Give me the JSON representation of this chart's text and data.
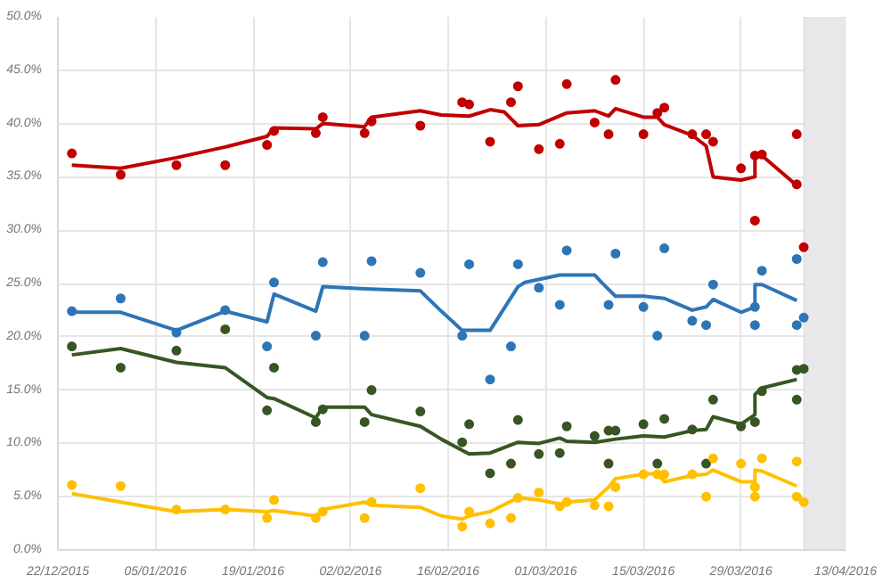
{
  "chart_data": {
    "type": "line",
    "xlim": [
      "2015-12-22",
      "2016-04-13"
    ],
    "xticks": [
      {
        "value": "2015-12-22",
        "label": "22/12/2015"
      },
      {
        "value": "2016-01-05",
        "label": "05/01/2016"
      },
      {
        "value": "2016-01-19",
        "label": "19/01/2016"
      },
      {
        "value": "2016-02-02",
        "label": "02/02/2016"
      },
      {
        "value": "2016-02-16",
        "label": "16/02/2016"
      },
      {
        "value": "2016-03-01",
        "label": "01/03/2016"
      },
      {
        "value": "2016-03-15",
        "label": "15/03/2016"
      },
      {
        "value": "2016-03-29",
        "label": "29/03/2016"
      },
      {
        "value": "2016-04-13",
        "label": "13/04/2016"
      }
    ],
    "ylim": [
      0,
      50
    ],
    "yticks": [
      {
        "value": 0,
        "label": "0.0%"
      },
      {
        "value": 5,
        "label": "5.0%"
      },
      {
        "value": 10,
        "label": "10.0%"
      },
      {
        "value": 15,
        "label": "15.0%"
      },
      {
        "value": 20,
        "label": "20.0%"
      },
      {
        "value": 25,
        "label": "25.0%"
      },
      {
        "value": 30,
        "label": "30.0%"
      },
      {
        "value": 35,
        "label": "35.0%"
      },
      {
        "value": 40,
        "label": "40.0%"
      },
      {
        "value": 45,
        "label": "45.0%"
      },
      {
        "value": 50,
        "label": "50.0%"
      }
    ],
    "grid": true,
    "line_style": "solid",
    "bands": [
      {
        "axis": "x",
        "from": "2016-04-07",
        "to": "2016-04-13",
        "color": "#e8e8ea"
      }
    ],
    "series": [
      {
        "type": "scatter",
        "marker": "circle",
        "color": "#c00000",
        "x": [
          "2015-12-24",
          "2015-12-31",
          "2016-01-08",
          "2016-01-15",
          "2016-01-21",
          "2016-01-22",
          "2016-01-28",
          "2016-01-29",
          "2016-02-04",
          "2016-02-05",
          "2016-02-12",
          "2016-02-18",
          "2016-02-19",
          "2016-02-22",
          "2016-02-25",
          "2016-02-26",
          "2016-02-29",
          "2016-03-03",
          "2016-03-04",
          "2016-03-08",
          "2016-03-10",
          "2016-03-11",
          "2016-03-15",
          "2016-03-17",
          "2016-03-18",
          "2016-03-22",
          "2016-03-24",
          "2016-03-25",
          "2016-03-29",
          "2016-03-31",
          "2016-03-31",
          "2016-04-01",
          "2016-04-06",
          "2016-04-06",
          "2016-04-07"
        ],
        "values": [
          37.2,
          35.2,
          36.1,
          36.1,
          38.0,
          39.3,
          39.1,
          40.6,
          39.1,
          40.2,
          39.8,
          42.0,
          41.8,
          38.3,
          42.0,
          43.5,
          37.6,
          38.1,
          43.7,
          40.1,
          39.0,
          44.1,
          39.0,
          41.0,
          41.5,
          39.0,
          39.0,
          38.3,
          35.8,
          37.0,
          30.9,
          37.1,
          39.0,
          34.3,
          28.4
        ]
      },
      {
        "type": "scatter",
        "marker": "circle",
        "color": "#2e75b6",
        "x": [
          "2015-12-24",
          "2015-12-31",
          "2016-01-08",
          "2016-01-15",
          "2016-01-21",
          "2016-01-22",
          "2016-01-28",
          "2016-01-29",
          "2016-02-04",
          "2016-02-05",
          "2016-02-12",
          "2016-02-18",
          "2016-02-19",
          "2016-02-22",
          "2016-02-25",
          "2016-02-26",
          "2016-02-29",
          "2016-03-03",
          "2016-03-04",
          "2016-03-10",
          "2016-03-11",
          "2016-03-15",
          "2016-03-17",
          "2016-03-18",
          "2016-03-22",
          "2016-03-24",
          "2016-03-25",
          "2016-03-31",
          "2016-03-31",
          "2016-04-01",
          "2016-04-06",
          "2016-04-06",
          "2016-04-07"
        ],
        "values": [
          22.4,
          23.6,
          20.4,
          22.5,
          19.1,
          25.1,
          20.1,
          27.0,
          20.1,
          27.1,
          26.0,
          20.1,
          26.8,
          16.0,
          19.1,
          26.8,
          24.6,
          23.0,
          28.1,
          23.0,
          27.8,
          22.8,
          20.1,
          28.3,
          21.5,
          21.1,
          24.9,
          22.8,
          21.1,
          26.2,
          21.1,
          27.3,
          21.8
        ]
      },
      {
        "type": "scatter",
        "marker": "circle",
        "color": "#375623",
        "x": [
          "2015-12-24",
          "2015-12-31",
          "2016-01-08",
          "2016-01-15",
          "2016-01-21",
          "2016-01-22",
          "2016-01-28",
          "2016-01-29",
          "2016-02-04",
          "2016-02-05",
          "2016-02-12",
          "2016-02-18",
          "2016-02-19",
          "2016-02-22",
          "2016-02-25",
          "2016-02-26",
          "2016-02-29",
          "2016-03-03",
          "2016-03-04",
          "2016-03-08",
          "2016-03-10",
          "2016-03-10",
          "2016-03-11",
          "2016-03-15",
          "2016-03-17",
          "2016-03-18",
          "2016-03-22",
          "2016-03-24",
          "2016-03-25",
          "2016-03-29",
          "2016-03-31",
          "2016-04-01",
          "2016-04-06",
          "2016-04-06",
          "2016-04-07"
        ],
        "values": [
          19.1,
          17.1,
          18.7,
          20.7,
          13.1,
          17.1,
          12.0,
          13.2,
          12.0,
          15.0,
          13.0,
          10.1,
          11.8,
          7.2,
          8.1,
          12.2,
          9.0,
          9.1,
          11.6,
          10.7,
          11.2,
          8.1,
          11.2,
          11.8,
          8.1,
          12.3,
          11.3,
          8.1,
          14.1,
          11.6,
          12.0,
          14.9,
          14.1,
          16.9,
          17.0
        ]
      },
      {
        "type": "scatter",
        "marker": "circle",
        "color": "#ffc000",
        "x": [
          "2015-12-24",
          "2015-12-31",
          "2016-01-08",
          "2016-01-15",
          "2016-01-21",
          "2016-01-22",
          "2016-01-28",
          "2016-01-29",
          "2016-02-04",
          "2016-02-05",
          "2016-02-12",
          "2016-02-18",
          "2016-02-19",
          "2016-02-22",
          "2016-02-25",
          "2016-02-26",
          "2016-02-29",
          "2016-03-03",
          "2016-03-04",
          "2016-03-08",
          "2016-03-10",
          "2016-03-11",
          "2016-03-15",
          "2016-03-17",
          "2016-03-18",
          "2016-03-22",
          "2016-03-24",
          "2016-03-25",
          "2016-03-29",
          "2016-03-31",
          "2016-03-31",
          "2016-04-01",
          "2016-04-06",
          "2016-04-06",
          "2016-04-07"
        ],
        "values": [
          6.1,
          6.0,
          3.8,
          3.8,
          3.0,
          4.7,
          3.0,
          3.6,
          3.0,
          4.5,
          5.8,
          2.2,
          3.6,
          2.5,
          3.0,
          4.9,
          5.4,
          4.1,
          4.5,
          4.2,
          4.1,
          5.9,
          7.1,
          7.1,
          7.1,
          7.1,
          5.0,
          8.6,
          8.1,
          5.9,
          5.0,
          8.6,
          8.3,
          5.0,
          4.5
        ]
      },
      {
        "marker": "none",
        "color": "#c00000",
        "x": [
          "2015-12-24",
          "2015-12-31",
          "2016-01-08",
          "2016-01-15",
          "2016-01-21",
          "2016-01-22",
          "2016-01-28",
          "2016-01-29",
          "2016-02-04",
          "2016-02-05",
          "2016-02-12",
          "2016-02-15",
          "2016-02-19",
          "2016-02-22",
          "2016-02-24",
          "2016-02-26",
          "2016-02-29",
          "2016-03-04",
          "2016-03-08",
          "2016-03-10",
          "2016-03-11",
          "2016-03-15",
          "2016-03-17",
          "2016-03-18",
          "2016-03-22",
          "2016-03-24",
          "2016-03-25",
          "2016-03-29",
          "2016-03-31",
          "2016-03-31",
          "2016-04-01",
          "2016-04-06"
        ],
        "values": [
          36.1,
          35.8,
          36.8,
          37.8,
          38.8,
          39.6,
          39.5,
          40.0,
          39.7,
          40.6,
          41.2,
          40.8,
          40.7,
          41.3,
          41.1,
          39.8,
          39.9,
          41.0,
          41.2,
          40.7,
          41.4,
          40.6,
          40.6,
          39.9,
          38.9,
          37.9,
          35.0,
          34.7,
          35.0,
          37.0,
          37.0,
          34.2
        ]
      },
      {
        "marker": "none",
        "color": "#2e75b6",
        "x": [
          "2015-12-24",
          "2015-12-31",
          "2016-01-08",
          "2016-01-15",
          "2016-01-21",
          "2016-01-22",
          "2016-01-28",
          "2016-01-29",
          "2016-02-04",
          "2016-02-12",
          "2016-02-15",
          "2016-02-18",
          "2016-02-22",
          "2016-02-26",
          "2016-02-27",
          "2016-03-03",
          "2016-03-08",
          "2016-03-09",
          "2016-03-11",
          "2016-03-15",
          "2016-03-18",
          "2016-03-22",
          "2016-03-24",
          "2016-03-25",
          "2016-03-29",
          "2016-03-31",
          "2016-03-31",
          "2016-04-01",
          "2016-04-06"
        ],
        "values": [
          22.3,
          22.3,
          20.6,
          22.4,
          21.4,
          24.0,
          22.4,
          24.7,
          24.5,
          24.3,
          22.4,
          20.6,
          20.6,
          24.7,
          25.1,
          25.8,
          25.8,
          25.1,
          23.8,
          23.8,
          23.6,
          22.5,
          22.8,
          23.5,
          22.3,
          22.8,
          24.9,
          24.9,
          23.4
        ]
      },
      {
        "marker": "none",
        "color": "#375623",
        "x": [
          "2015-12-24",
          "2015-12-31",
          "2016-01-08",
          "2016-01-15",
          "2016-01-21",
          "2016-01-22",
          "2016-01-28",
          "2016-01-29",
          "2016-02-04",
          "2016-02-05",
          "2016-02-12",
          "2016-02-15",
          "2016-02-19",
          "2016-02-22",
          "2016-02-26",
          "2016-02-29",
          "2016-03-03",
          "2016-03-04",
          "2016-03-08",
          "2016-03-11",
          "2016-03-15",
          "2016-03-18",
          "2016-03-22",
          "2016-03-24",
          "2016-03-25",
          "2016-03-29",
          "2016-03-31",
          "2016-03-31",
          "2016-04-01",
          "2016-04-06"
        ],
        "values": [
          18.3,
          18.9,
          17.6,
          17.1,
          14.3,
          14.2,
          12.4,
          13.4,
          13.4,
          12.7,
          11.6,
          10.4,
          9.0,
          9.1,
          10.1,
          10.0,
          10.5,
          10.2,
          10.1,
          10.4,
          10.7,
          10.6,
          11.2,
          11.3,
          12.5,
          11.8,
          12.7,
          14.6,
          15.2,
          16.0
        ]
      },
      {
        "marker": "none",
        "color": "#ffc000",
        "x": [
          "2015-12-24",
          "2015-12-31",
          "2016-01-08",
          "2016-01-15",
          "2016-01-21",
          "2016-01-22",
          "2016-01-28",
          "2016-01-29",
          "2016-02-04",
          "2016-02-05",
          "2016-02-12",
          "2016-02-15",
          "2016-02-18",
          "2016-02-19",
          "2016-02-22",
          "2016-02-26",
          "2016-02-29",
          "2016-03-03",
          "2016-03-04",
          "2016-03-08",
          "2016-03-10",
          "2016-03-11",
          "2016-03-15",
          "2016-03-17",
          "2016-03-18",
          "2016-03-22",
          "2016-03-24",
          "2016-03-25",
          "2016-03-29",
          "2016-03-31",
          "2016-03-31",
          "2016-04-01",
          "2016-04-06"
        ],
        "values": [
          5.3,
          4.5,
          3.6,
          3.8,
          3.6,
          3.7,
          3.2,
          3.8,
          4.5,
          4.2,
          4.0,
          3.2,
          2.9,
          3.2,
          3.6,
          4.9,
          4.7,
          4.3,
          4.5,
          4.7,
          5.9,
          6.7,
          7.1,
          7.2,
          6.4,
          7.0,
          7.1,
          7.5,
          6.4,
          6.4,
          7.5,
          7.4,
          6.0
        ]
      }
    ]
  }
}
